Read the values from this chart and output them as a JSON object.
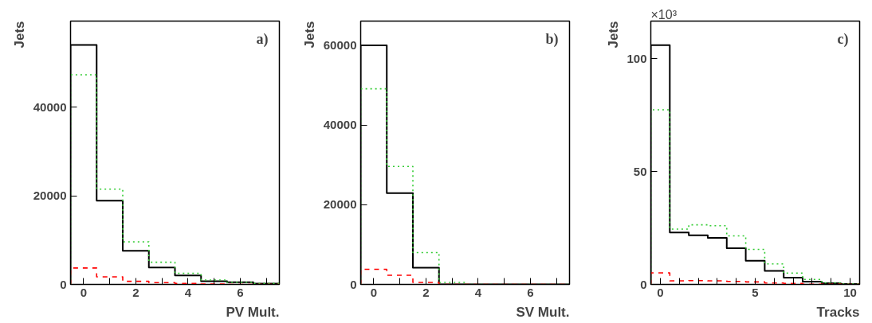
{
  "chart_data": [
    {
      "type": "histogram",
      "xlabel": "PV Mult.",
      "ylabel": "Jets",
      "annotations": [
        "a)"
      ],
      "bins": [
        -0.5,
        0.5,
        1.5,
        2.5,
        3.5,
        4.5,
        5.5,
        6.5,
        7.5
      ],
      "xlim": [
        -0.5,
        7.5
      ],
      "ylim": [
        0,
        59400
      ],
      "xticks": [
        0,
        {
          "value": 1,
          "label": null
        },
        2,
        {
          "value": 3,
          "label": null
        },
        4,
        {
          "value": 5,
          "label": null
        },
        6,
        {
          "value": 7,
          "label": null
        }
      ],
      "yticks": [
        0,
        20000,
        40000
      ],
      "grid": false,
      "series": [
        {
          "color": "#000000",
          "line_style": "solid",
          "values": [
            54000,
            18900,
            7600,
            3800,
            2000,
            700,
            500,
            200
          ]
        },
        {
          "color": "#33cc33",
          "line_style": "dotted",
          "values": [
            47300,
            21500,
            9600,
            5000,
            2500,
            1000,
            500,
            200
          ]
        },
        {
          "color": "#ff0000",
          "line_style": "dashed",
          "values": [
            3700,
            1700,
            700,
            400,
            200,
            100,
            0,
            0
          ]
        }
      ]
    },
    {
      "type": "histogram",
      "xlabel": "SV Mult.",
      "ylabel": "Jets",
      "annotations": [
        "b)"
      ],
      "bins": [
        -0.5,
        0.5,
        1.5,
        2.5,
        3.5,
        4.5,
        5.5,
        6.5,
        7.5
      ],
      "xlim": [
        -0.5,
        7.5
      ],
      "ylim": [
        0,
        66100
      ],
      "xticks": [
        0,
        {
          "value": 1,
          "label": null
        },
        2,
        {
          "value": 3,
          "label": null
        },
        4,
        {
          "value": 5,
          "label": null
        },
        6,
        {
          "value": 7,
          "label": null
        }
      ],
      "yticks": [
        0,
        20000,
        40000,
        60000
      ],
      "grid": false,
      "series": [
        {
          "color": "#000000",
          "line_style": "solid",
          "values": [
            60000,
            22900,
            4200,
            0,
            0,
            0,
            0,
            0
          ]
        },
        {
          "color": "#33cc33",
          "line_style": "dotted",
          "values": [
            49100,
            29600,
            8000,
            500,
            0,
            0,
            0,
            0
          ]
        },
        {
          "color": "#ff0000",
          "line_style": "dashed",
          "values": [
            3800,
            2300,
            500,
            0,
            0,
            0,
            0,
            0
          ]
        }
      ]
    },
    {
      "type": "histogram",
      "xlabel": "Tracks",
      "ylabel": "Jets",
      "annotations": [
        "c)",
        "×10³"
      ],
      "bins": [
        -0.5,
        0.5,
        1.5,
        2.5,
        3.5,
        4.5,
        5.5,
        6.5,
        7.5,
        8.5,
        9.5,
        10.5
      ],
      "xlim": [
        -0.5,
        10.5
      ],
      "ylim": [
        0,
        116.7
      ],
      "xticks": [
        0,
        {
          "value": 1,
          "label": null
        },
        {
          "value": 2,
          "label": null
        },
        {
          "value": 3,
          "label": null
        },
        {
          "value": 4,
          "label": null
        },
        5,
        {
          "value": 6,
          "label": null
        },
        {
          "value": 7,
          "label": null
        },
        {
          "value": 8,
          "label": null
        },
        {
          "value": 9,
          "label": null
        },
        10
      ],
      "yticks": [
        0,
        50,
        100
      ],
      "grid": false,
      "series": [
        {
          "color": "#000000",
          "line_style": "solid",
          "values": [
            106.0,
            23.0,
            21.8,
            20.6,
            16.0,
            10.5,
            6.0,
            3.0,
            1.2,
            0.5,
            0.2
          ]
        },
        {
          "color": "#33cc33",
          "line_style": "dotted",
          "values": [
            77.4,
            24.5,
            26.4,
            26.0,
            21.5,
            15.5,
            9.1,
            5.0,
            2.2,
            0.7,
            0.2
          ]
        },
        {
          "color": "#ff0000",
          "line_style": "dashed",
          "values": [
            5.1,
            1.6,
            1.7,
            1.6,
            1.3,
            1.1,
            0.6,
            0.4,
            0.1,
            0.1,
            0.0
          ]
        }
      ]
    }
  ]
}
